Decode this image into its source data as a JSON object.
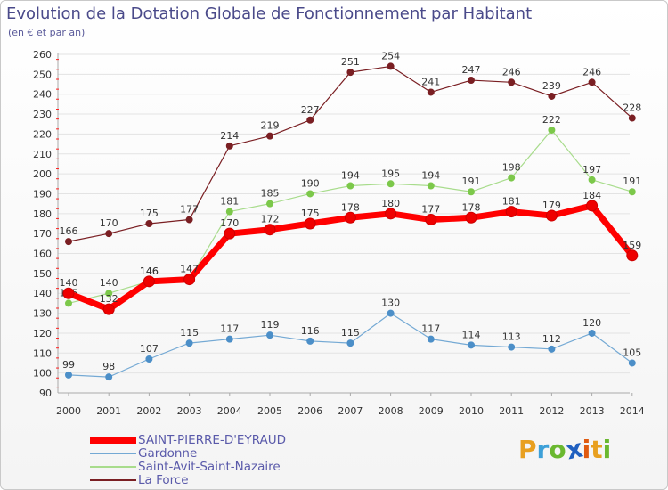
{
  "title": "Evolution de la Dotation Globale de Fonctionnement par Habitant",
  "subtitle": "(en € et par an)",
  "brand": "Proxiti",
  "colors": {
    "axis": "#aaaaaa",
    "tick_mark": "#ff2020",
    "grid": "#e3e3e3",
    "label": "#333333",
    "logo": [
      "#e8a020",
      "#3da0d8",
      "#6ab830",
      "#2060c0",
      "#e05a10",
      "#e8a020",
      "#6ab830"
    ]
  },
  "chart_data": {
    "type": "line",
    "x": [
      "2000",
      "2001",
      "2002",
      "2003",
      "2004",
      "2005",
      "2006",
      "2007",
      "2008",
      "2009",
      "2010",
      "2011",
      "2012",
      "2013",
      "2014"
    ],
    "ylim": [
      90,
      260
    ],
    "yticks": [
      90,
      100,
      110,
      120,
      130,
      140,
      150,
      160,
      170,
      180,
      190,
      200,
      210,
      220,
      230,
      240,
      250,
      260
    ],
    "grid": "horizontal",
    "legend_position": "bottom-left",
    "series": [
      {
        "name": "La Force",
        "color": "#7a1f23",
        "marker": "#7a1f23",
        "width": 1.2,
        "markerSize": 3.5,
        "values": [
          166,
          170,
          175,
          177,
          214,
          219,
          227,
          251,
          254,
          241,
          247,
          246,
          239,
          246,
          228
        ]
      },
      {
        "name": "Saint-Avit-Saint-Nazaire",
        "color": "#a8dc8c",
        "marker": "#7cc84a",
        "width": 1.2,
        "markerSize": 3.5,
        "values": [
          135,
          140,
          146,
          147,
          181,
          185,
          190,
          194,
          195,
          194,
          191,
          198,
          222,
          197,
          191
        ]
      },
      {
        "name": "Gardonne",
        "color": "#74a9d4",
        "marker": "#4c8fc8",
        "width": 1.2,
        "markerSize": 3.5,
        "values": [
          99,
          98,
          107,
          115,
          117,
          119,
          116,
          115,
          130,
          117,
          114,
          113,
          112,
          120,
          105
        ]
      },
      {
        "name": "SAINT-PIERRE-D'EYRAUD",
        "color": "#ff0000",
        "marker": "#ee0000",
        "width": 7,
        "markerSize": 6,
        "values": [
          140,
          132,
          146,
          147,
          170,
          172,
          175,
          178,
          180,
          177,
          178,
          181,
          179,
          184,
          159
        ]
      }
    ],
    "legend": [
      "SAINT-PIERRE-D'EYRAUD",
      "Gardonne",
      "Saint-Avit-Saint-Nazaire",
      "La Force"
    ]
  }
}
